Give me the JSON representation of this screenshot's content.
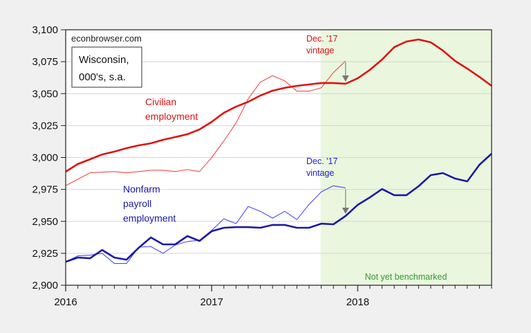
{
  "chart_data": {
    "type": "line",
    "title": "",
    "source_label": "econbrowser.com",
    "box_label": [
      "Wisconsin,",
      "000's, s.a."
    ],
    "xlabel": "",
    "ylabel": "",
    "ylim": [
      2900,
      3100
    ],
    "yticks": [
      2900,
      2925,
      2950,
      2975,
      3000,
      3025,
      3050,
      3075,
      3100
    ],
    "ytick_labels": [
      "2,900",
      "2,925",
      "2,950",
      "2,975",
      "3,000",
      "3,025",
      "3,050",
      "3,075",
      "3,100"
    ],
    "xtick_labels": [
      "2016",
      "2017",
      "2018"
    ],
    "x": [
      "2016-01",
      "2016-02",
      "2016-03",
      "2016-04",
      "2016-05",
      "2016-06",
      "2016-07",
      "2016-08",
      "2016-09",
      "2016-10",
      "2016-11",
      "2016-12",
      "2017-01",
      "2017-02",
      "2017-03",
      "2017-04",
      "2017-05",
      "2017-06",
      "2017-07",
      "2017-08",
      "2017-09",
      "2017-10",
      "2017-11",
      "2017-12",
      "2018-01",
      "2018-02",
      "2018-03",
      "2018-04",
      "2018-05",
      "2018-06",
      "2018-07",
      "2018-08",
      "2018-09",
      "2018-10",
      "2018-11",
      "2018-12"
    ],
    "grid": true,
    "shaded_region": {
      "start": "2017-10",
      "end": "2018-12",
      "color": "#eaf7de",
      "label": "Not yet benchmarked",
      "label_color": "#2e9a2e"
    },
    "series": [
      {
        "name": "Civilian employment",
        "color": "#e01010",
        "width": 2.6,
        "values": [
          2988.9,
          2994.9,
          2998.6,
          3002.4,
          3004.6,
          3007.3,
          3009.5,
          3011.1,
          3013.8,
          3016.0,
          3018.2,
          3022.0,
          3027.9,
          3035.0,
          3039.8,
          3043.6,
          3048.5,
          3052.3,
          3054.5,
          3056.1,
          3057.2,
          3058.3,
          3058.3,
          3057.7,
          3062.0,
          3068.6,
          3076.7,
          3086.4,
          3090.8,
          3092.4,
          3090.2,
          3083.7,
          3075.6,
          3069.6,
          3063.1,
          3056.1
        ]
      },
      {
        "name": "Civilian employment, Dec. '17 vintage",
        "color": "#f04a4a",
        "width": 1.1,
        "values": [
          2978.0,
          2983.0,
          2988.0,
          2988.5,
          2989.0,
          2988.0,
          2989.0,
          2990.0,
          2990.0,
          2989.0,
          2990.5,
          2989.0,
          3000.0,
          3013.0,
          3027.0,
          3046.0,
          3059.0,
          3064.0,
          3060.0,
          3052.0,
          3052.0,
          3054.5,
          3066.5,
          3075.6
        ]
      },
      {
        "name": "Nonfarm payroll employment",
        "color": "#1a1aa8",
        "width": 2.6,
        "values": [
          2918.4,
          2921.7,
          2921.1,
          2927.6,
          2921.7,
          2920.0,
          2929.3,
          2937.4,
          2932.0,
          2932.0,
          2938.5,
          2934.7,
          2942.3,
          2945.0,
          2945.5,
          2945.5,
          2945.0,
          2947.2,
          2947.2,
          2945.0,
          2945.0,
          2948.2,
          2947.7,
          2954.2,
          2962.9,
          2968.8,
          2975.3,
          2970.5,
          2970.5,
          2977.5,
          2986.2,
          2987.8,
          2983.5,
          2981.3,
          2994.3,
          3003.0
        ]
      },
      {
        "name": "Nonfarm payroll employment, Dec. '17 vintage",
        "color": "#4a4af0",
        "width": 1.1,
        "values": [
          2918.4,
          2923.0,
          2923.5,
          2925.0,
          2917.0,
          2917.0,
          2929.8,
          2930.3,
          2925.0,
          2931.5,
          2934.2,
          2935.3,
          2943.0,
          2952.0,
          2948.2,
          2961.7,
          2957.9,
          2952.5,
          2957.9,
          2951.4,
          2963.3,
          2973.0,
          2977.9,
          2976.2
        ]
      }
    ],
    "annotations": [
      {
        "text": [
          "Civilian",
          "employment"
        ],
        "color": "#e01010"
      },
      {
        "text": [
          "Nonfarm",
          "payroll",
          "employment"
        ],
        "color": "#1a1aa8"
      },
      {
        "text": [
          "Dec. '17",
          "vintage"
        ],
        "color": "#e01010",
        "arrow_from": 3075.6,
        "arrow_to": 3057.7,
        "at": "2017-12"
      },
      {
        "text": [
          "Dec. '17",
          "vintage"
        ],
        "color": "#2020e0",
        "arrow_from": 2976.2,
        "arrow_to": 2954.2,
        "at": "2017-12"
      }
    ]
  }
}
